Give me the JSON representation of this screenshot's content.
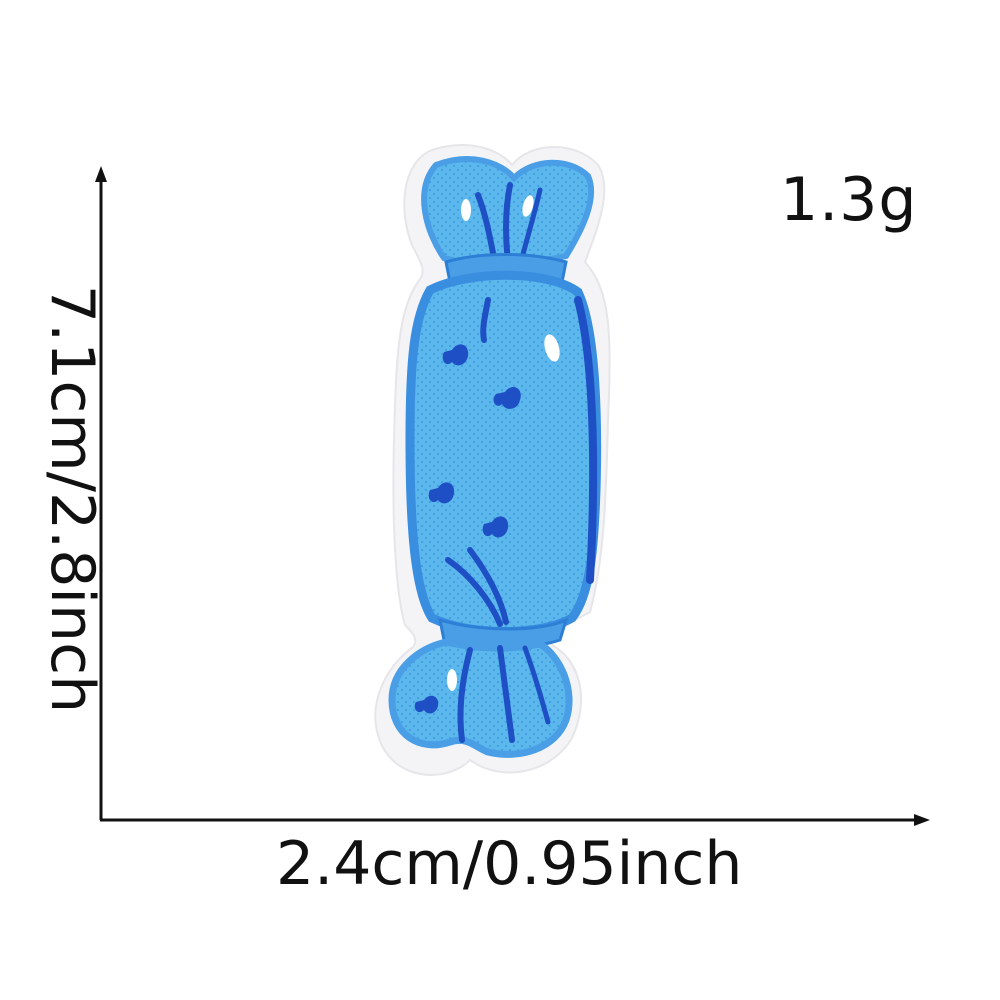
{
  "product": {
    "weight": "1.3g",
    "height_dimension": "7.1cm/2.8inch",
    "width_dimension": "2.4cm/0.95inch"
  },
  "patch": {
    "subject": "blue wrapped candy embroidered patch",
    "colors": {
      "felt_backing": "#f4f4f6",
      "light_blue": "#5cb8ec",
      "mid_blue": "#2d7fd6",
      "dark_blue": "#1e4fc4",
      "highlight": "#ffffff"
    }
  },
  "axes": {
    "color": "#111111"
  }
}
